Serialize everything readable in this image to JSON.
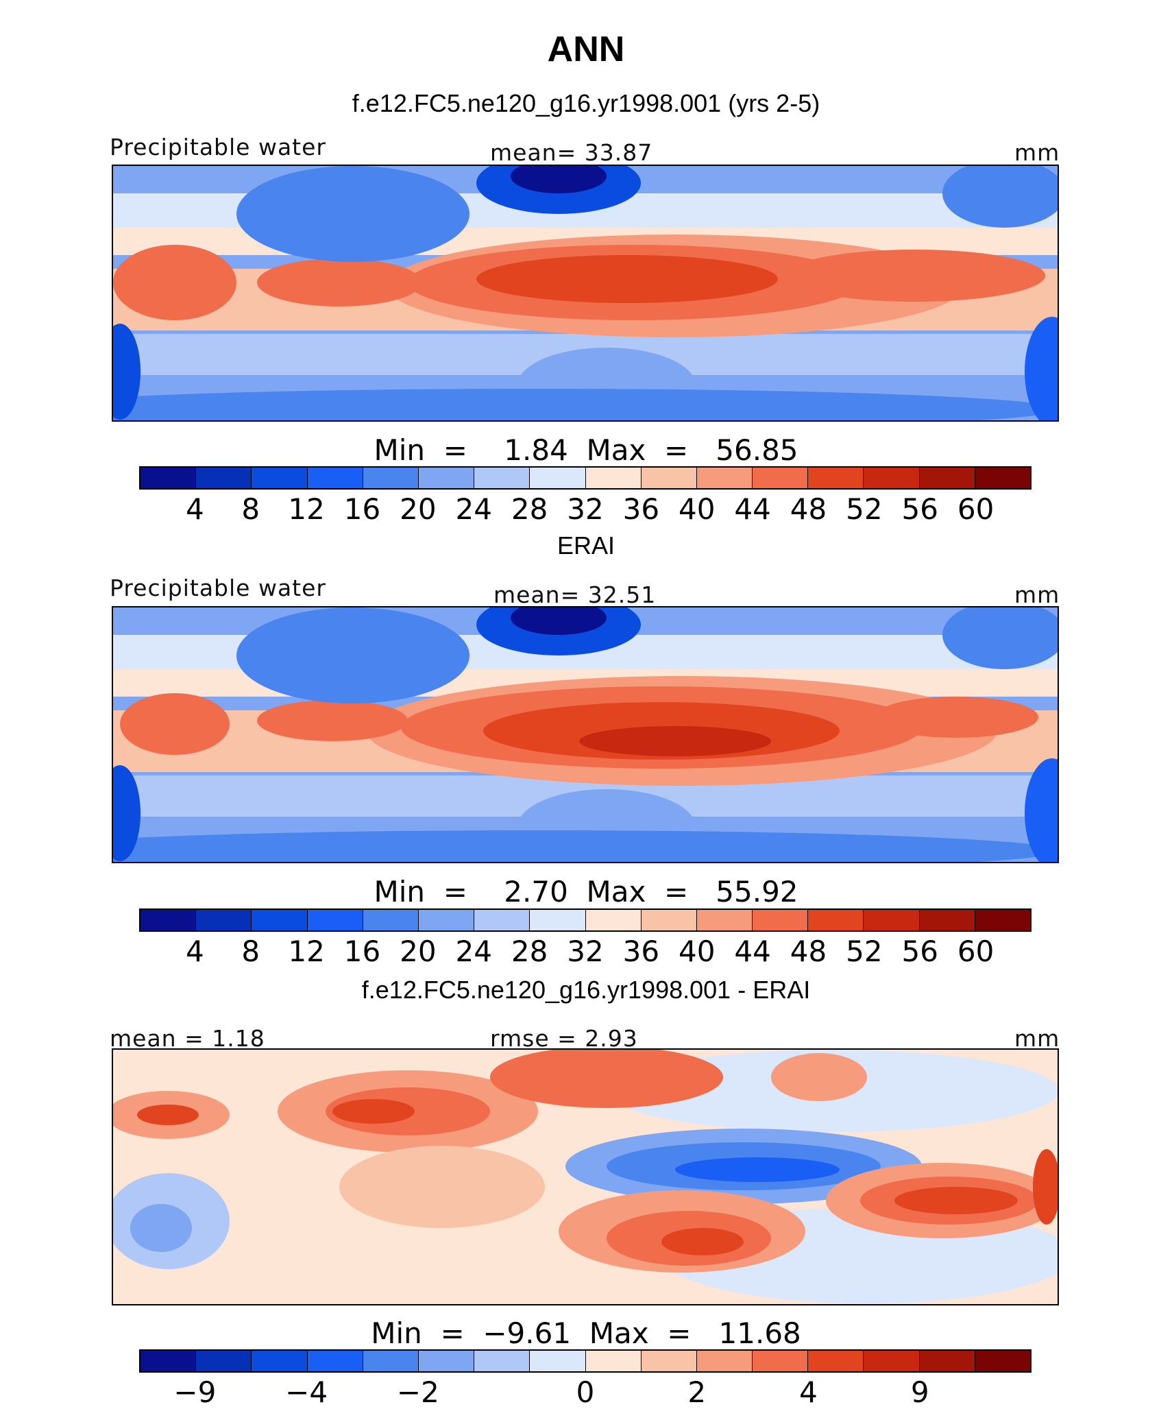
{
  "title": "ANN",
  "palette": [
    "#08108f",
    "#0630b8",
    "#0a4be0",
    "#1a5ff5",
    "#4a84ee",
    "#7ea6f2",
    "#b0c8f7",
    "#dbe7fb",
    "#fde6d6",
    "#f9c3a8",
    "#f69b7c",
    "#f06c4a",
    "#e2441f",
    "#c7280f",
    "#a31506",
    "#7a0403"
  ],
  "panels": [
    {
      "subtitle": "f.e12.FC5.ne120_g16.yr1998.001 (yrs 2-5)",
      "left_label": "Precipitable water",
      "center_label": "mean=   33.87",
      "right_label": "mm",
      "minmax": "Min  =    1.84  Max  =   56.85"
    },
    {
      "subtitle": "ERAI",
      "left_label": "Precipitable water",
      "center_label": "mean=   32.51",
      "right_label": "mm",
      "minmax": "Min  =    2.70  Max  =   55.92"
    },
    {
      "subtitle": "f.e12.FC5.ne120_g16.yr1998.001 - ERAI",
      "left_label": "mean =    1.18",
      "center_label": "rmse =    2.93",
      "right_label": "mm",
      "minmax": "Min  =  −9.61  Max  =   11.68"
    }
  ],
  "chart_data": [
    {
      "type": "heatmap",
      "title": "f.e12.FC5.ne120_g16.yr1998.001 (yrs 2-5)",
      "variable": "Precipitable water",
      "units": "mm",
      "mean": 33.87,
      "min": 1.84,
      "max": 56.85,
      "colorbar_levels": [
        4,
        8,
        12,
        16,
        20,
        24,
        28,
        32,
        36,
        40,
        44,
        48,
        52,
        56,
        60
      ],
      "colorbar_tick_labels": [
        "4",
        "8",
        "12",
        "16",
        "20",
        "24",
        "28",
        "32",
        "36",
        "40",
        "44",
        "48",
        "52",
        "56",
        "60"
      ]
    },
    {
      "type": "heatmap",
      "title": "ERAI",
      "variable": "Precipitable water",
      "units": "mm",
      "mean": 32.51,
      "min": 2.7,
      "max": 55.92,
      "colorbar_levels": [
        4,
        8,
        12,
        16,
        20,
        24,
        28,
        32,
        36,
        40,
        44,
        48,
        52,
        56,
        60
      ],
      "colorbar_tick_labels": [
        "4",
        "8",
        "12",
        "16",
        "20",
        "24",
        "28",
        "32",
        "36",
        "40",
        "44",
        "48",
        "52",
        "56",
        "60"
      ]
    },
    {
      "type": "heatmap",
      "title": "f.e12.FC5.ne120_g16.yr1998.001 - ERAI",
      "units": "mm",
      "mean": 1.18,
      "rmse": 2.93,
      "min": -9.61,
      "max": 11.68,
      "colorbar_levels": [
        -9,
        -6,
        -4,
        -3,
        -2,
        -1,
        0,
        1,
        2,
        3,
        4,
        6,
        9
      ],
      "colorbar_tick_labels": [
        "−9",
        "−4",
        "−2",
        "0",
        "2",
        "4",
        "9"
      ]
    }
  ]
}
